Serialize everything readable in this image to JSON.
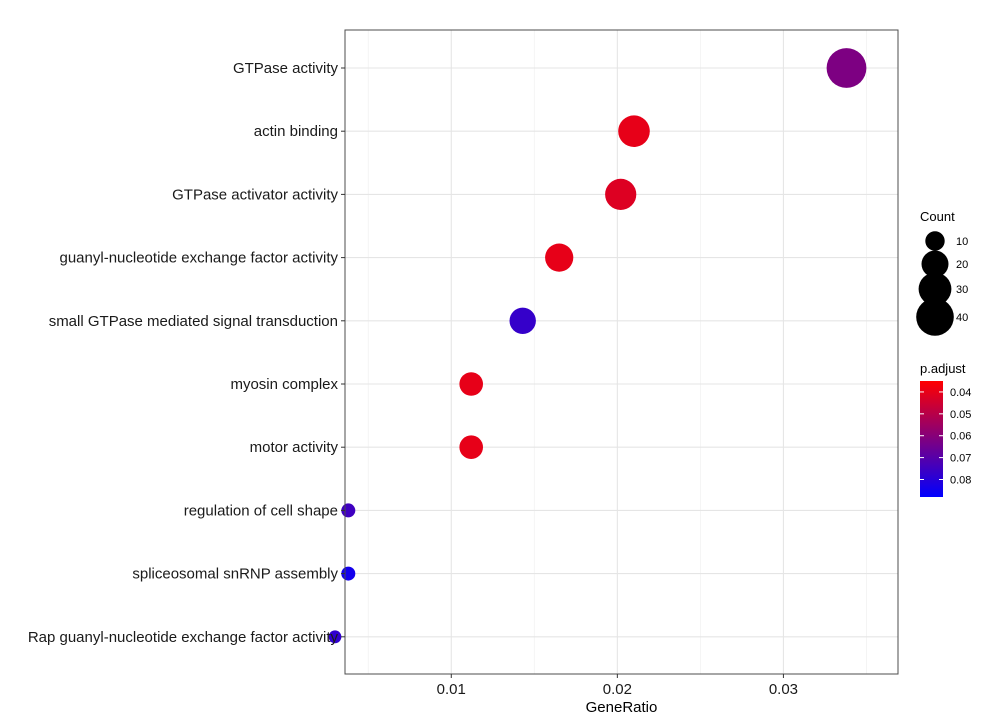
{
  "chart_data": {
    "type": "scatter",
    "xlabel": "GeneRatio",
    "ylabel": "",
    "xlim": [
      0.0036,
      0.0369
    ],
    "x_ticks": [
      0.01,
      0.02,
      0.03
    ],
    "x_tick_labels": [
      "0.01",
      "0.02",
      "0.03"
    ],
    "grid": true,
    "terms": [
      "GTPase activity",
      "actin binding",
      "GTPase activator activity",
      "guanyl-nucleotide exchange factor activity",
      "small GTPase mediated signal transduction",
      "myosin complex",
      "motor activity",
      "regulation of cell shape",
      "spliceosomal snRNP assembly",
      "Rap guanyl-nucleotide exchange factor activity"
    ],
    "points": [
      {
        "term": "GTPase activity",
        "gene_ratio": 0.0338,
        "count": 45,
        "p_adjust": 0.062
      },
      {
        "term": "actin binding",
        "gene_ratio": 0.021,
        "count": 28,
        "p_adjust": 0.04
      },
      {
        "term": "GTPase activator activity",
        "gene_ratio": 0.0202,
        "count": 27,
        "p_adjust": 0.042
      },
      {
        "term": "guanyl-nucleotide exchange factor activity",
        "gene_ratio": 0.0165,
        "count": 22,
        "p_adjust": 0.04
      },
      {
        "term": "small GTPase mediated signal transduction",
        "gene_ratio": 0.0143,
        "count": 19,
        "p_adjust": 0.077
      },
      {
        "term": "myosin complex",
        "gene_ratio": 0.0112,
        "count": 15,
        "p_adjust": 0.04
      },
      {
        "term": "motor activity",
        "gene_ratio": 0.0112,
        "count": 15,
        "p_adjust": 0.04
      },
      {
        "term": "regulation of cell shape",
        "gene_ratio": 0.0038,
        "count": 5,
        "p_adjust": 0.075
      },
      {
        "term": "spliceosomal snRNP assembly",
        "gene_ratio": 0.0038,
        "count": 5,
        "p_adjust": 0.084
      },
      {
        "term": "Rap guanyl-nucleotide exchange factor activity",
        "gene_ratio": 0.003,
        "count": 4,
        "p_adjust": 0.078
      }
    ],
    "legend_size": {
      "title": "Count",
      "values": [
        10,
        20,
        30,
        40
      ],
      "labels": [
        "10",
        "20",
        "30",
        "40"
      ]
    },
    "legend_color": {
      "title": "p.adjust",
      "range": [
        0.035,
        0.088
      ],
      "low_color": "#ff0000",
      "high_color": "#0000ff",
      "ticks": [
        0.04,
        0.05,
        0.06,
        0.07,
        0.08
      ],
      "tick_labels": [
        "0.04",
        "0.05",
        "0.06",
        "0.07",
        "0.08"
      ]
    },
    "legend_placement": "right",
    "colors": {
      "panel_border": "#4d4d4d",
      "grid_major": "#e5e5e5",
      "grid_minor": "#f2f2f2"
    }
  }
}
